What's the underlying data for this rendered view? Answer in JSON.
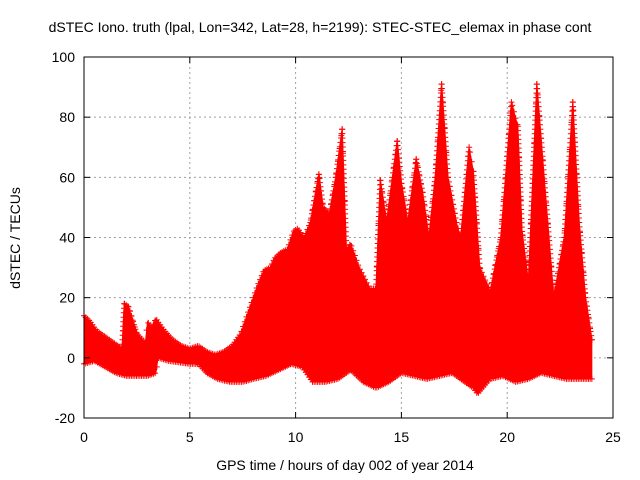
{
  "chart_data": {
    "type": "scatter",
    "title": "dSTEC Iono. truth (lpal, Lon=342, Lat=28, h=2199): STEC-STEC_elemax in phase cont",
    "xlabel": "GPS time / hours of day 002 of year 2014",
    "ylabel": "dSTEC  / TECUs",
    "xlim": [
      0,
      25
    ],
    "ylim": [
      -20,
      100
    ],
    "xticks": [
      0,
      5,
      10,
      15,
      20,
      25
    ],
    "yticks": [
      -20,
      0,
      20,
      40,
      60,
      80,
      100
    ],
    "grid": true,
    "marker": "plus",
    "series_color": "#ff0000",
    "series": [
      {
        "envelope_upper": [
          [
            0,
            14
          ],
          [
            0.3,
            12
          ],
          [
            0.6,
            9
          ],
          [
            1.0,
            7
          ],
          [
            1.4,
            5
          ],
          [
            1.8,
            3
          ],
          [
            1.9,
            18
          ],
          [
            2.1,
            17
          ],
          [
            2.5,
            8
          ],
          [
            2.9,
            5
          ],
          [
            3.0,
            12
          ],
          [
            3.2,
            10
          ],
          [
            3.4,
            13
          ],
          [
            3.8,
            9
          ],
          [
            4.2,
            6
          ],
          [
            4.6,
            4
          ],
          [
            5.0,
            3
          ],
          [
            5.4,
            4
          ],
          [
            5.8,
            2
          ],
          [
            6.2,
            1
          ],
          [
            6.6,
            2
          ],
          [
            7.0,
            4
          ],
          [
            7.4,
            8
          ],
          [
            7.8,
            16
          ],
          [
            8.2,
            24
          ],
          [
            8.5,
            29
          ],
          [
            8.8,
            30
          ],
          [
            9.0,
            33
          ],
          [
            9.3,
            35
          ],
          [
            9.6,
            36
          ],
          [
            9.9,
            42
          ],
          [
            10.1,
            43
          ],
          [
            10.4,
            40
          ],
          [
            10.7,
            45
          ],
          [
            11.1,
            61
          ],
          [
            11.3,
            50
          ],
          [
            11.6,
            48
          ],
          [
            11.9,
            60
          ],
          [
            12.2,
            76
          ],
          [
            12.4,
            36
          ],
          [
            12.6,
            38
          ],
          [
            13.0,
            30
          ],
          [
            13.5,
            23
          ],
          [
            13.8,
            23
          ],
          [
            14.0,
            59
          ],
          [
            14.3,
            45
          ],
          [
            14.8,
            72
          ],
          [
            15.0,
            58
          ],
          [
            15.3,
            45
          ],
          [
            15.7,
            66
          ],
          [
            16.0,
            55
          ],
          [
            16.3,
            40
          ],
          [
            16.6,
            60
          ],
          [
            16.9,
            91
          ],
          [
            17.2,
            60
          ],
          [
            17.6,
            45
          ],
          [
            17.8,
            40
          ],
          [
            18.2,
            70
          ],
          [
            18.4,
            62
          ],
          [
            18.7,
            30
          ],
          [
            19.2,
            22
          ],
          [
            19.7,
            40
          ],
          [
            20.2,
            85
          ],
          [
            20.5,
            77
          ],
          [
            20.7,
            42
          ],
          [
            21.0,
            25
          ],
          [
            21.4,
            91
          ],
          [
            21.8,
            55
          ],
          [
            22.2,
            20
          ],
          [
            22.7,
            40
          ],
          [
            23.1,
            85
          ],
          [
            23.4,
            45
          ],
          [
            23.7,
            20
          ],
          [
            24.0,
            6
          ]
        ],
        "envelope_lower": [
          [
            0,
            -2
          ],
          [
            0.5,
            -1
          ],
          [
            1.0,
            -3
          ],
          [
            1.5,
            -5
          ],
          [
            2.0,
            -6
          ],
          [
            2.5,
            -6
          ],
          [
            3.0,
            -6
          ],
          [
            3.4,
            -5
          ],
          [
            3.5,
            0
          ],
          [
            4.0,
            -1
          ],
          [
            5.0,
            -2
          ],
          [
            5.4,
            -2
          ],
          [
            5.8,
            -5
          ],
          [
            6.3,
            -7
          ],
          [
            6.9,
            -8
          ],
          [
            7.5,
            -8
          ],
          [
            8.0,
            -7
          ],
          [
            8.6,
            -6
          ],
          [
            9.2,
            -4
          ],
          [
            9.8,
            -2
          ],
          [
            10.3,
            -3
          ],
          [
            10.8,
            -8
          ],
          [
            11.4,
            -8
          ],
          [
            12.0,
            -7
          ],
          [
            12.6,
            -4
          ],
          [
            13.2,
            -8
          ],
          [
            13.8,
            -10
          ],
          [
            14.4,
            -8
          ],
          [
            15.0,
            -5
          ],
          [
            15.6,
            -6
          ],
          [
            16.2,
            -7
          ],
          [
            16.8,
            -6
          ],
          [
            17.4,
            -5
          ],
          [
            18.0,
            -8
          ],
          [
            18.4,
            -10
          ],
          [
            18.6,
            -12
          ],
          [
            19.2,
            -7
          ],
          [
            19.8,
            -6
          ],
          [
            20.4,
            -8
          ],
          [
            21.0,
            -7
          ],
          [
            21.6,
            -5
          ],
          [
            22.2,
            -6
          ],
          [
            22.8,
            -7
          ],
          [
            23.4,
            -7
          ],
          [
            24.0,
            -7
          ]
        ]
      }
    ]
  }
}
